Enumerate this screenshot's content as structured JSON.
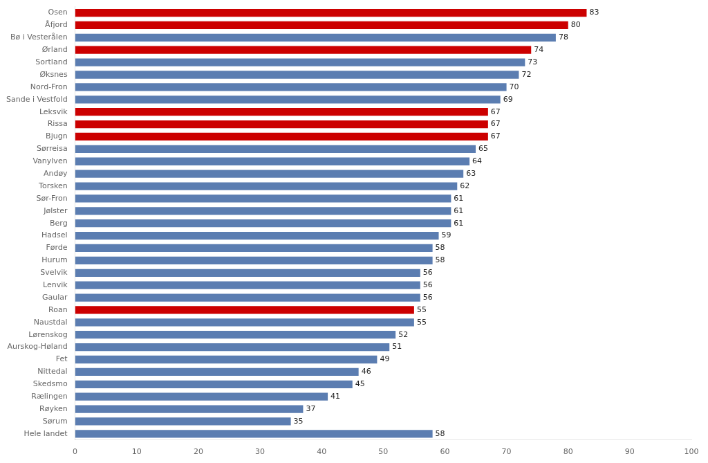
{
  "chart_data": {
    "type": "bar",
    "orientation": "horizontal",
    "categories": [
      "Osen",
      "Åfjord",
      "Bø i Vesterålen",
      "Ørland",
      "Sortland",
      "Øksnes",
      "Nord-Fron",
      "Sande i Vestfold",
      "Leksvik",
      "Rissa",
      "Bjugn",
      "Sørreisa",
      "Vanylven",
      "Andøy",
      "Torsken",
      "Sør-Fron",
      "Jølster",
      "Berg",
      "Hadsel",
      "Førde",
      "Hurum",
      "Svelvik",
      "Lenvik",
      "Gaular",
      "Roan",
      "Naustdal",
      "Lørenskog",
      "Aurskog-Høland",
      "Fet",
      "Nittedal",
      "Skedsmo",
      "Rælingen",
      "Røyken",
      "Sørum",
      "Hele landet"
    ],
    "values": [
      83,
      80,
      78,
      74,
      73,
      72,
      70,
      69,
      67,
      67,
      67,
      65,
      64,
      63,
      62,
      61,
      61,
      61,
      59,
      58,
      58,
      56,
      56,
      56,
      55,
      55,
      52,
      51,
      49,
      46,
      45,
      41,
      37,
      35,
      58
    ],
    "colors": [
      "#cc0000",
      "#cc0000",
      "#5b7db1",
      "#cc0000",
      "#5b7db1",
      "#5b7db1",
      "#5b7db1",
      "#5b7db1",
      "#cc0000",
      "#cc0000",
      "#cc0000",
      "#5b7db1",
      "#5b7db1",
      "#5b7db1",
      "#5b7db1",
      "#5b7db1",
      "#5b7db1",
      "#5b7db1",
      "#5b7db1",
      "#5b7db1",
      "#5b7db1",
      "#5b7db1",
      "#5b7db1",
      "#5b7db1",
      "#cc0000",
      "#5b7db1",
      "#5b7db1",
      "#5b7db1",
      "#5b7db1",
      "#5b7db1",
      "#5b7db1",
      "#5b7db1",
      "#5b7db1",
      "#5b7db1",
      "#5b7db1"
    ],
    "xlim": [
      0,
      100
    ],
    "xticks": [
      0,
      10,
      20,
      30,
      40,
      50,
      60,
      70,
      80,
      90,
      100
    ],
    "grid": false,
    "data_labels": true
  }
}
